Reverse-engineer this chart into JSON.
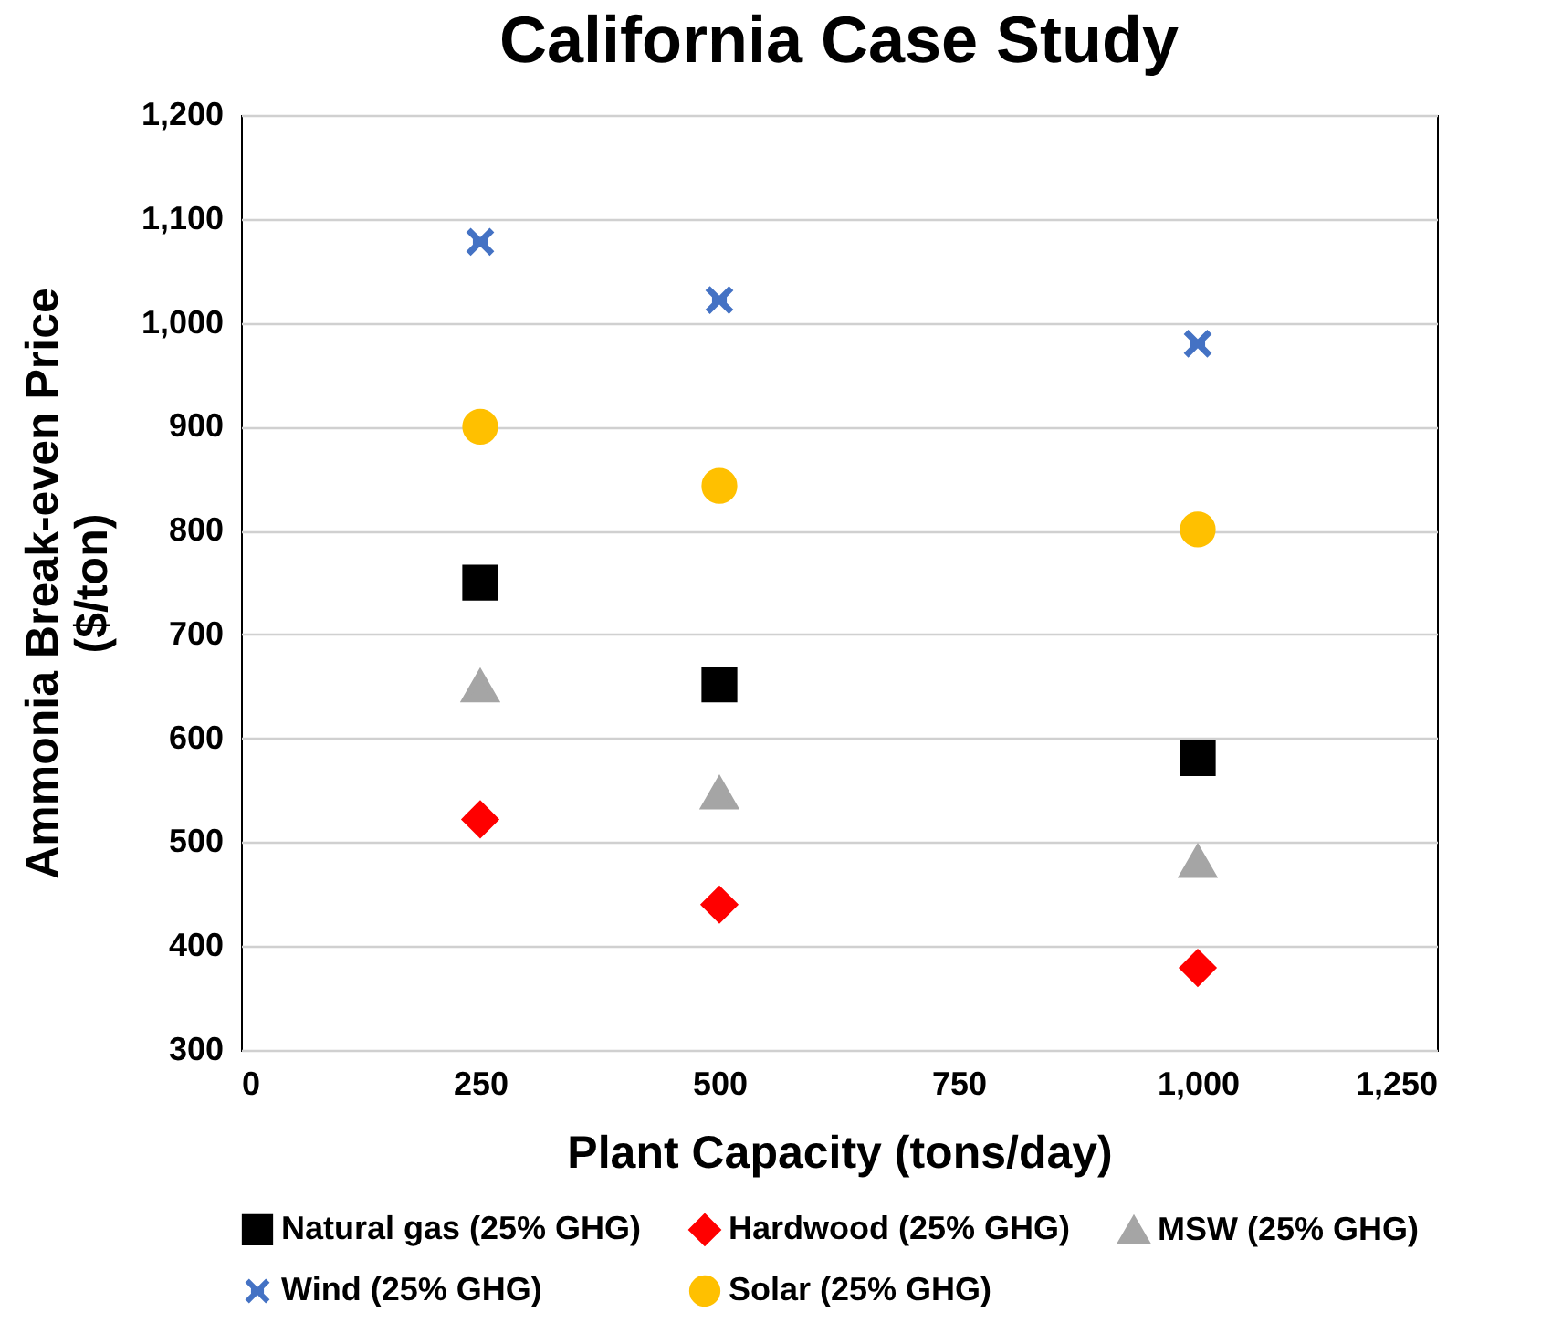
{
  "chart_data": {
    "type": "scatter",
    "title": "California Case Study",
    "xlabel": "Plant Capacity (tons/day)",
    "ylabel": "Ammonia Break-even Price\n($/ton)",
    "xlim": [
      0,
      1250
    ],
    "xticks": [
      0,
      250,
      500,
      750,
      {
        "value": 1000,
        "label": "1,000"
      },
      {
        "value": 1250,
        "label": "1,250"
      }
    ],
    "ylim": [
      300,
      1200
    ],
    "yticks": [
      300,
      400,
      500,
      600,
      700,
      800,
      900,
      {
        "value": 1000,
        "label": "1,000"
      },
      {
        "value": 1100,
        "label": "1,100"
      },
      {
        "value": 1200,
        "label": "1,200"
      }
    ],
    "grid": "y",
    "legend": "bottom",
    "x": [
      250,
      500,
      1000
    ],
    "series": [
      {
        "name": "Natural gas (25% GHG)",
        "color": "#000000",
        "marker": "square",
        "values": [
          750,
          652,
          581
        ]
      },
      {
        "name": "Hardwood (25% GHG)",
        "color": "#ff0000",
        "marker": "diamond",
        "values": [
          522,
          440,
          379
        ]
      },
      {
        "name": "MSW (25% GHG)",
        "color": "#a5a5a5",
        "marker": "triangle",
        "values": [
          650,
          547,
          481
        ]
      },
      {
        "name": "Wind (25% GHG)",
        "color": "#4472c4",
        "marker": "cross",
        "values": [
          1078,
          1022,
          980
        ]
      },
      {
        "name": "Solar (25% GHG)",
        "color": "#ffc000",
        "marker": "circle",
        "values": [
          900,
          843,
          801
        ]
      }
    ]
  }
}
